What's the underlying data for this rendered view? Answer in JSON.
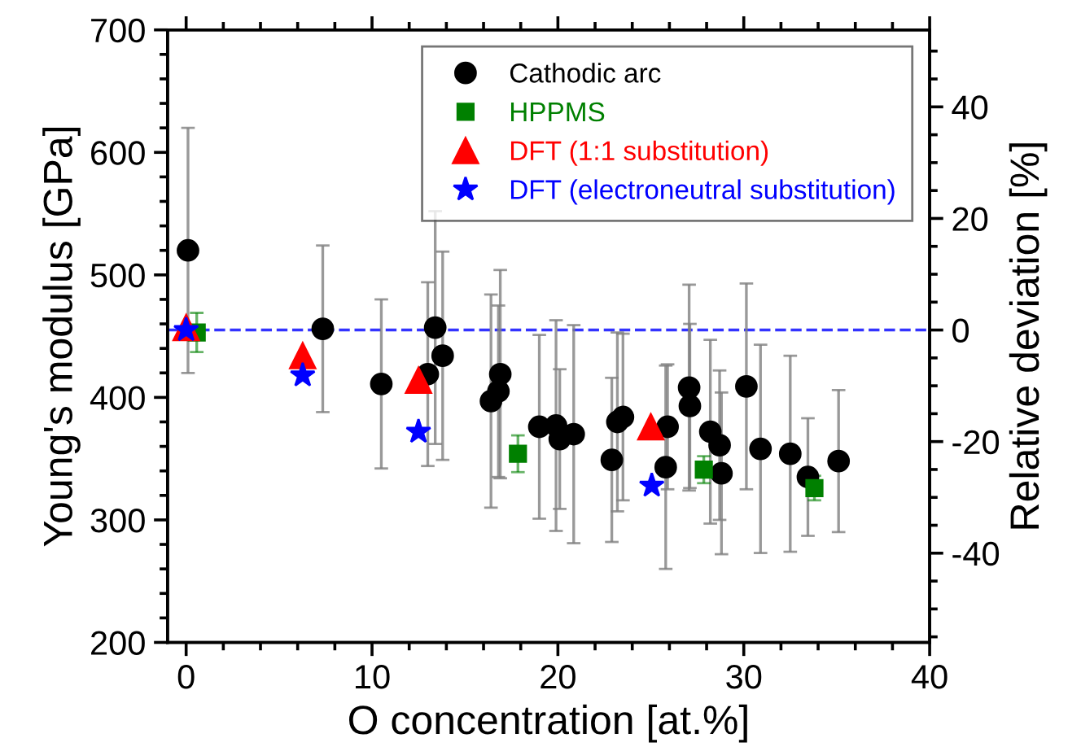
{
  "chart_data": {
    "type": "scatter",
    "xlabel": "O concentration [at.%]",
    "ylabel": "Young's modulus [GPa]",
    "y2label": "Relative deviation [%]",
    "xlim": [
      -1,
      40
    ],
    "xticks": [
      0,
      10,
      20,
      30,
      40
    ],
    "ylim": [
      200,
      700
    ],
    "yticks": [
      200,
      300,
      400,
      500,
      600,
      700
    ],
    "y2lim": [
      -56,
      53.8
    ],
    "y2ticks": [
      -40,
      -20,
      0,
      20,
      40
    ],
    "legend": "top right",
    "grid": false,
    "ref_lines": [
      {
        "axis": "y2",
        "value": 0,
        "color": "#3333ff",
        "line_style": "dashed"
      }
    ],
    "series": [
      {
        "name": "Cathodic arc",
        "color": "#000000",
        "marker": "circle",
        "x": [
          0.1,
          7.35,
          10.5,
          13.0,
          13.4,
          13.8,
          16.4,
          16.8,
          16.9,
          19.0,
          19.9,
          20.1,
          20.85,
          22.9,
          23.2,
          23.5,
          25.8,
          25.9,
          27.06,
          27.1,
          28.2,
          28.7,
          28.8,
          30.14,
          30.9,
          32.5,
          33.45,
          35.1
        ],
        "values": [
          520,
          456,
          411,
          419,
          457,
          434,
          397,
          405,
          419,
          376,
          377,
          366,
          370,
          349,
          380,
          384,
          343,
          376,
          408,
          393,
          372,
          361,
          338,
          409,
          358,
          354,
          335,
          348
        ],
        "errors": [
          100,
          68,
          69,
          75,
          95,
          85,
          87,
          70,
          85,
          75,
          86,
          57,
          89,
          67,
          73,
          68,
          83,
          51,
          84,
          67,
          75,
          61,
          66,
          84,
          85,
          80,
          48,
          58
        ]
      },
      {
        "name": "HPPMS",
        "color": "#008000",
        "marker": "square",
        "x": [
          0.57,
          17.85,
          27.85,
          33.8
        ],
        "values": [
          453,
          354,
          341,
          326
        ],
        "errors": [
          16,
          15,
          11,
          10
        ]
      },
      {
        "name": "DFT (1:1 substitution)",
        "color": "#ff0000",
        "marker": "triangle",
        "x": [
          0,
          6.27,
          12.5,
          25.0
        ],
        "values": [
          457,
          434,
          414,
          376
        ]
      },
      {
        "name": "DFT (electroneutral substitution)",
        "color": "#0000ff",
        "marker": "star",
        "x": [
          0,
          6.27,
          12.5,
          25.05
        ],
        "values": [
          455,
          418,
          372,
          328
        ]
      }
    ]
  }
}
